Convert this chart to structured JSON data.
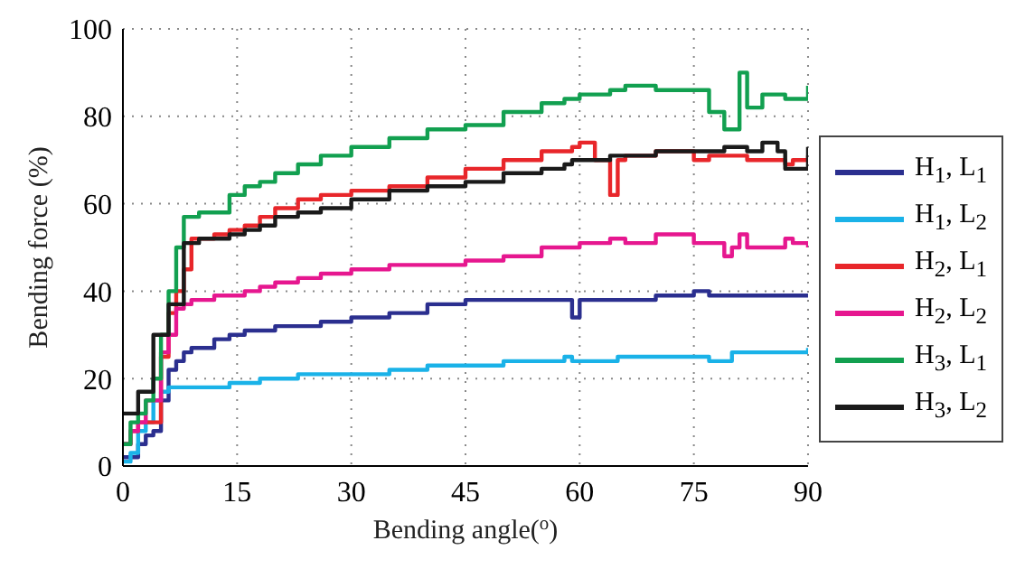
{
  "chart_data": {
    "type": "step",
    "xlabel": "Bending angle($^{o}$)",
    "ylabel": "Bending force (%)",
    "x": [
      0,
      1,
      2,
      3,
      4,
      5,
      6,
      7,
      8,
      9,
      10,
      12,
      14,
      16,
      18,
      20,
      23,
      26,
      30,
      35,
      40,
      45,
      50,
      55,
      58,
      59,
      60,
      62,
      64,
      65,
      66,
      70,
      75,
      77,
      79,
      80,
      81,
      82,
      84,
      86,
      87,
      88,
      90
    ],
    "series": [
      {
        "name": "H$_{1}$, L$_{1}$",
        "color": "#2b2f8f",
        "values": [
          2,
          2,
          5,
          7,
          8,
          15,
          22,
          24,
          26,
          27,
          27,
          29,
          30,
          31,
          31,
          32,
          32,
          33,
          34,
          35,
          37,
          38,
          38,
          38,
          38,
          34,
          38,
          38,
          38,
          38,
          38,
          39,
          40,
          39,
          39,
          39,
          39,
          39,
          39,
          39,
          39,
          39,
          39
        ]
      },
      {
        "name": "H$_{1}$, L$_{2}$",
        "color": "#1ab2e8",
        "values": [
          1,
          3,
          8,
          10,
          15,
          17,
          18,
          18,
          18,
          18,
          18,
          18,
          19,
          19,
          20,
          20,
          21,
          21,
          21,
          22,
          23,
          23,
          24,
          24,
          25,
          24,
          24,
          24,
          24,
          25,
          25,
          25,
          25,
          24,
          24,
          26,
          26,
          26,
          26,
          26,
          26,
          26,
          27
        ]
      },
      {
        "name": "H$_{2}$, L$_{1}$",
        "color": "#e8262a",
        "values": [
          5,
          8,
          10,
          10,
          10,
          25,
          35,
          40,
          45,
          52,
          52,
          53,
          54,
          55,
          57,
          59,
          61,
          62,
          63,
          64,
          66,
          68,
          70,
          72,
          72,
          73,
          74,
          70,
          62,
          70,
          71,
          72,
          70,
          71,
          71,
          71,
          71,
          70,
          70,
          70,
          69,
          70,
          71
        ]
      },
      {
        "name": "H$_{2}$, L$_{2}$",
        "color": "#e6178f",
        "values": [
          5,
          8,
          10,
          15,
          15,
          26,
          30,
          36,
          37,
          38,
          38,
          39,
          39,
          40,
          41,
          42,
          43,
          44,
          45,
          46,
          46,
          47,
          48,
          50,
          50,
          50,
          51,
          51,
          52,
          52,
          51,
          53,
          51,
          51,
          48,
          50,
          53,
          50,
          50,
          50,
          52,
          51,
          50
        ]
      },
      {
        "name": "H$_{3}$, L$_{1}$",
        "color": "#12a050",
        "values": [
          5,
          10,
          12,
          15,
          20,
          30,
          40,
          50,
          57,
          57,
          58,
          58,
          62,
          64,
          65,
          67,
          69,
          71,
          73,
          75,
          77,
          78,
          81,
          83,
          84,
          84,
          85,
          85,
          86,
          86,
          87,
          86,
          86,
          81,
          77,
          77,
          90,
          82,
          85,
          85,
          84,
          84,
          87
        ]
      },
      {
        "name": "H$_{3}$, L$_{2}$",
        "color": "#1a1a1a",
        "values": [
          12,
          12,
          17,
          17,
          30,
          30,
          37,
          37,
          51,
          51,
          52,
          52,
          53,
          54,
          55,
          57,
          58,
          59,
          61,
          63,
          64,
          65,
          67,
          68,
          69,
          70,
          70,
          70,
          71,
          71,
          71,
          72,
          72,
          72,
          73,
          73,
          73,
          72,
          74,
          72,
          68,
          68,
          73
        ]
      }
    ],
    "xlim": [
      0,
      90
    ],
    "xticks": [
      0,
      15,
      30,
      45,
      60,
      75,
      90
    ],
    "ylim": [
      0,
      100
    ],
    "yticks": [
      0,
      20,
      40,
      60,
      80,
      100
    ],
    "grid": true,
    "legend": "right",
    "line_style": "solid",
    "marker": "none"
  }
}
